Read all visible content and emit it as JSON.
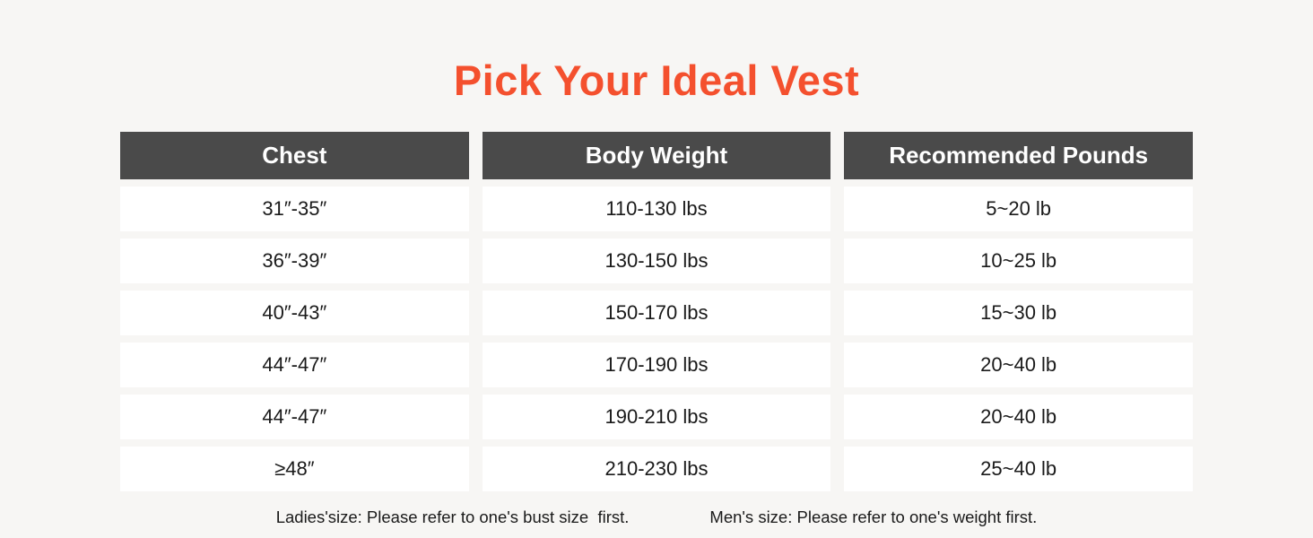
{
  "title": "Pick Your Ideal Vest",
  "chart_data": {
    "type": "table",
    "title": "Pick Your Ideal Vest",
    "columns": [
      "Chest",
      "Body Weight",
      "Recommended Pounds"
    ],
    "rows": [
      [
        "31″-35″",
        "110-130 lbs",
        "5~20 lb"
      ],
      [
        "36″-39″",
        "130-150 lbs",
        "10~25 lb"
      ],
      [
        "40″-43″",
        "150-170 lbs",
        "15~30 lb"
      ],
      [
        "44″-47″",
        "170-190 lbs",
        "20~40 lb"
      ],
      [
        "44″-47″",
        "190-210 lbs",
        "20~40 lb"
      ],
      [
        "≥48″",
        "210-230 lbs",
        "25~40 lb"
      ]
    ]
  },
  "footnotes": {
    "ladies": "Ladies'size: Please refer to one's bust size  first.",
    "mens": "Men's size: Please refer to one's weight first."
  },
  "colors": {
    "page_bg": "#f7f6f4",
    "title_color": "#f4502e",
    "header_bg": "#4a4a4a",
    "header_text": "#ffffff",
    "cell_bg": "#ffffff",
    "cell_text": "#1a1a1a"
  }
}
